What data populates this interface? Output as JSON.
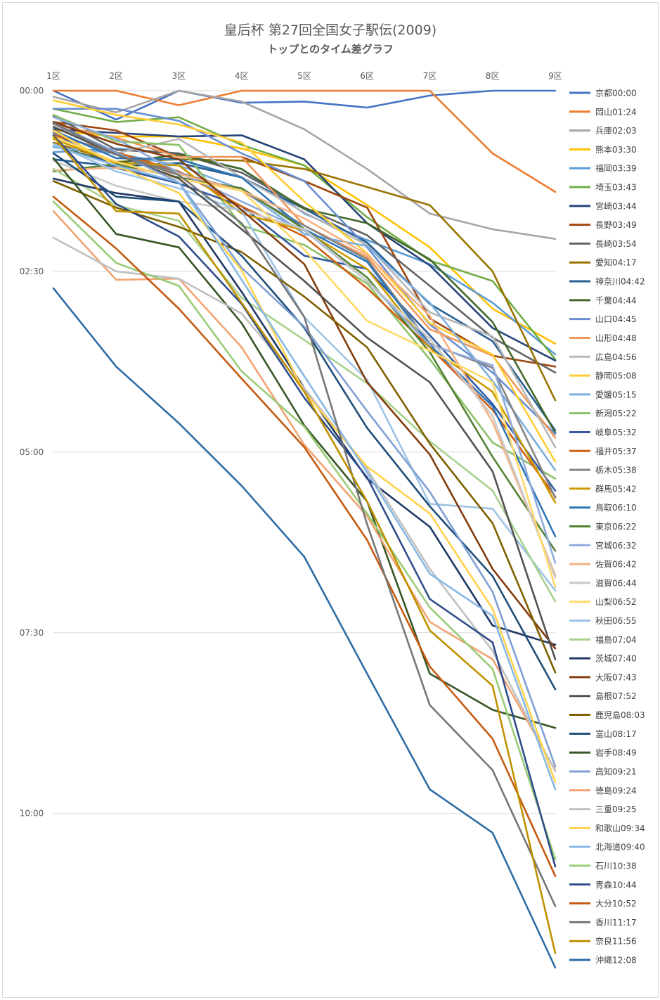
{
  "chart_data": {
    "type": "line",
    "title": "皇后杯 第27回全国女子駅伝(2009)",
    "subtitle": "トップとのタイム差グラフ",
    "x_categories": [
      "1区",
      "2区",
      "3区",
      "4区",
      "5区",
      "6区",
      "7区",
      "8区",
      "9区"
    ],
    "y_unit": "seconds behind top",
    "y_ticks": [
      {
        "value": 0,
        "label": "00:00"
      },
      {
        "value": 150,
        "label": "02:30"
      },
      {
        "value": 300,
        "label": "05:00"
      },
      {
        "value": 450,
        "label": "07:30"
      },
      {
        "value": 600,
        "label": "10:00"
      }
    ],
    "ylim": [
      0,
      728
    ],
    "y_inverted": true,
    "grid": true,
    "legend_position": "right",
    "series": [
      {
        "label": "京都00:00",
        "color": "#4472c4",
        "values": [
          0,
          24,
          0,
          10,
          9,
          14,
          4,
          0,
          0
        ]
      },
      {
        "label": "岡山01:24",
        "color": "#ed7d31",
        "values": [
          0,
          0,
          12,
          0,
          0,
          0,
          0,
          52,
          84
        ]
      },
      {
        "label": "兵庫02:03",
        "color": "#a5a5a5",
        "values": [
          5,
          18,
          0,
          9,
          32,
          65,
          102,
          115,
          123
        ]
      },
      {
        "label": "熊本03:30",
        "color": "#ffc000",
        "values": [
          33,
          38,
          38,
          48,
          62,
          95,
          130,
          181,
          210
        ]
      },
      {
        "label": "福岡03:39",
        "color": "#5b9bd5",
        "values": [
          51,
          48,
          52,
          65,
          102,
          124,
          144,
          176,
          219
        ]
      },
      {
        "label": "埼玉03:43",
        "color": "#70ad47",
        "values": [
          15,
          26,
          22,
          45,
          62,
          105,
          141,
          158,
          223
        ]
      },
      {
        "label": "宮崎03:44",
        "color": "#264478",
        "values": [
          32,
          35,
          38,
          37,
          57,
          110,
          145,
          197,
          224
        ]
      },
      {
        "label": "長野03:49",
        "color": "#9e480e",
        "values": [
          26,
          33,
          55,
          55,
          75,
          97,
          189,
          220,
          229
        ]
      },
      {
        "label": "長崎03:54",
        "color": "#636363",
        "values": [
          21,
          49,
          52,
          68,
          97,
          120,
          162,
          205,
          234
        ]
      },
      {
        "label": "愛知04:17",
        "color": "#997300",
        "values": [
          43,
          59,
          57,
          58,
          65,
          80,
          95,
          150,
          257
        ]
      },
      {
        "label": "神奈川04:42",
        "color": "#255e91",
        "values": [
          57,
          63,
          60,
          72,
          98,
          126,
          177,
          208,
          282
        ]
      },
      {
        "label": "千葉04:44",
        "color": "#43682b",
        "values": [
          46,
          60,
          53,
          65,
          98,
          110,
          140,
          192,
          284
        ]
      },
      {
        "label": "山口04:45",
        "color": "#698ed0",
        "values": [
          15,
          15,
          25,
          52,
          75,
          130,
          194,
          234,
          285
        ]
      },
      {
        "label": "山形04:48",
        "color": "#f1975a",
        "values": [
          28,
          39,
          55,
          55,
          112,
          138,
          198,
          220,
          288
        ]
      },
      {
        "label": "広島04:56",
        "color": "#b7b7b7",
        "values": [
          28,
          52,
          40,
          72,
          101,
          128,
          184,
          204,
          296
        ]
      },
      {
        "label": "静岡05:08",
        "color": "#ffcd33",
        "values": [
          8,
          20,
          28,
          43,
          92,
          135,
          193,
          219,
          308
        ]
      },
      {
        "label": "愛媛05:15",
        "color": "#7cafdd",
        "values": [
          47,
          52,
          62,
          82,
          119,
          129,
          176,
          241,
          315
        ]
      },
      {
        "label": "新潟05:22",
        "color": "#8cc168",
        "values": [
          20,
          42,
          45,
          112,
          128,
          160,
          223,
          292,
          322
        ]
      },
      {
        "label": "岐阜05:32",
        "color": "#335aa1",
        "values": [
          35,
          64,
          77,
          96,
          137,
          148,
          203,
          260,
          332
        ]
      },
      {
        "label": "福井05:37",
        "color": "#d26012",
        "values": [
          37,
          51,
          67,
          96,
          121,
          164,
          213,
          265,
          337
        ]
      },
      {
        "label": "栃木05:38",
        "color": "#848484",
        "values": [
          35,
          53,
          68,
          83,
          112,
          140,
          210,
          230,
          338
        ]
      },
      {
        "label": "群馬05:42",
        "color": "#cc9a00",
        "values": [
          40,
          60,
          62,
          102,
          116,
          148,
          213,
          250,
          342
        ]
      },
      {
        "label": "鳥取06:10",
        "color": "#2e75b6",
        "values": [
          33,
          56,
          57,
          72,
          115,
          142,
          211,
          262,
          370
        ]
      },
      {
        "label": "東京06:22",
        "color": "#548235",
        "values": [
          67,
          61,
          72,
          81,
          115,
          155,
          217,
          304,
          382
        ]
      },
      {
        "label": "宮城06:32",
        "color": "#8faadc",
        "values": [
          22,
          40,
          68,
          92,
          116,
          158,
          211,
          228,
          392
        ]
      },
      {
        "label": "佐賀06:42",
        "color": "#f4b183",
        "values": [
          66,
          64,
          69,
          83,
          106,
          136,
          187,
          275,
          402
        ]
      },
      {
        "label": "滋賀06:44",
        "color": "#c9c9c9",
        "values": [
          58,
          79,
          92,
          99,
          115,
          158,
          206,
          270,
          404
        ]
      },
      {
        "label": "山梨06:52",
        "color": "#ffd966",
        "values": [
          38,
          59,
          73,
          83,
          132,
          191,
          216,
          242,
          412
        ]
      },
      {
        "label": "秋田06:55",
        "color": "#9dc3e6",
        "values": [
          44,
          67,
          81,
          100,
          188,
          240,
          343,
          347,
          415
        ]
      },
      {
        "label": "福島07:04",
        "color": "#a9d18e",
        "values": [
          65,
          95,
          108,
          172,
          207,
          243,
          291,
          332,
          424
        ]
      },
      {
        "label": "茨城07:40",
        "color": "#203864",
        "values": [
          73,
          85,
          92,
          167,
          247,
          322,
          362,
          444,
          460
        ]
      },
      {
        "label": "大阪07:43",
        "color": "#843c0c",
        "values": [
          26,
          44,
          57,
          99,
          144,
          242,
          302,
          397,
          463
        ]
      },
      {
        "label": "島根07:52",
        "color": "#525252",
        "values": [
          30,
          53,
          73,
          115,
          158,
          205,
          242,
          316,
          472
        ]
      },
      {
        "label": "鹿児島08:03",
        "color": "#7f6000",
        "values": [
          75,
          97,
          113,
          134,
          171,
          213,
          293,
          359,
          483
        ]
      },
      {
        "label": "富山08:17",
        "color": "#1f4e79",
        "values": [
          52,
          88,
          92,
          137,
          197,
          280,
          345,
          403,
          497
        ]
      },
      {
        "label": "岩手08:49",
        "color": "#375623",
        "values": [
          56,
          119,
          130,
          193,
          278,
          341,
          484,
          514,
          529
        ]
      },
      {
        "label": "高知09:21",
        "color": "#7f9fd3",
        "values": [
          27,
          51,
          76,
          147,
          196,
          266,
          333,
          416,
          561
        ]
      },
      {
        "label": "徳島09:24",
        "color": "#f2a373",
        "values": [
          100,
          157,
          156,
          213,
          294,
          353,
          441,
          472,
          564
        ]
      },
      {
        "label": "三重09:25",
        "color": "#c0c0c0",
        "values": [
          122,
          150,
          156,
          185,
          247,
          314,
          397,
          465,
          565
        ]
      },
      {
        "label": "和歌山09:34",
        "color": "#ffd24d",
        "values": [
          33,
          62,
          85,
          149,
          250,
          312,
          351,
          430,
          574
        ]
      },
      {
        "label": "北海道09:40",
        "color": "#86b8e5",
        "values": [
          46,
          62,
          76,
          157,
          237,
          317,
          401,
          436,
          580
        ]
      },
      {
        "label": "石川10:38",
        "color": "#99cc77",
        "values": [
          92,
          143,
          162,
          233,
          279,
          351,
          429,
          480,
          638
        ]
      },
      {
        "label": "青森10:44",
        "color": "#2f4d8a",
        "values": [
          37,
          94,
          121,
          177,
          255,
          321,
          422,
          458,
          644
        ]
      },
      {
        "label": "大分10:52",
        "color": "#c55a11",
        "values": [
          88,
          131,
          181,
          239,
          296,
          373,
          478,
          538,
          652
        ]
      },
      {
        "label": "香川11:17",
        "color": "#767676",
        "values": [
          27,
          53,
          70,
          110,
          188,
          360,
          510,
          564,
          677
        ]
      },
      {
        "label": "奈良11:56",
        "color": "#bf9000",
        "values": [
          38,
          100,
          102,
          176,
          250,
          341,
          448,
          494,
          716
        ]
      },
      {
        "label": "沖縄12:08",
        "color": "#2e6ca4",
        "values": [
          164,
          229,
          276,
          328,
          387,
          484,
          580,
          616,
          728
        ]
      }
    ]
  }
}
